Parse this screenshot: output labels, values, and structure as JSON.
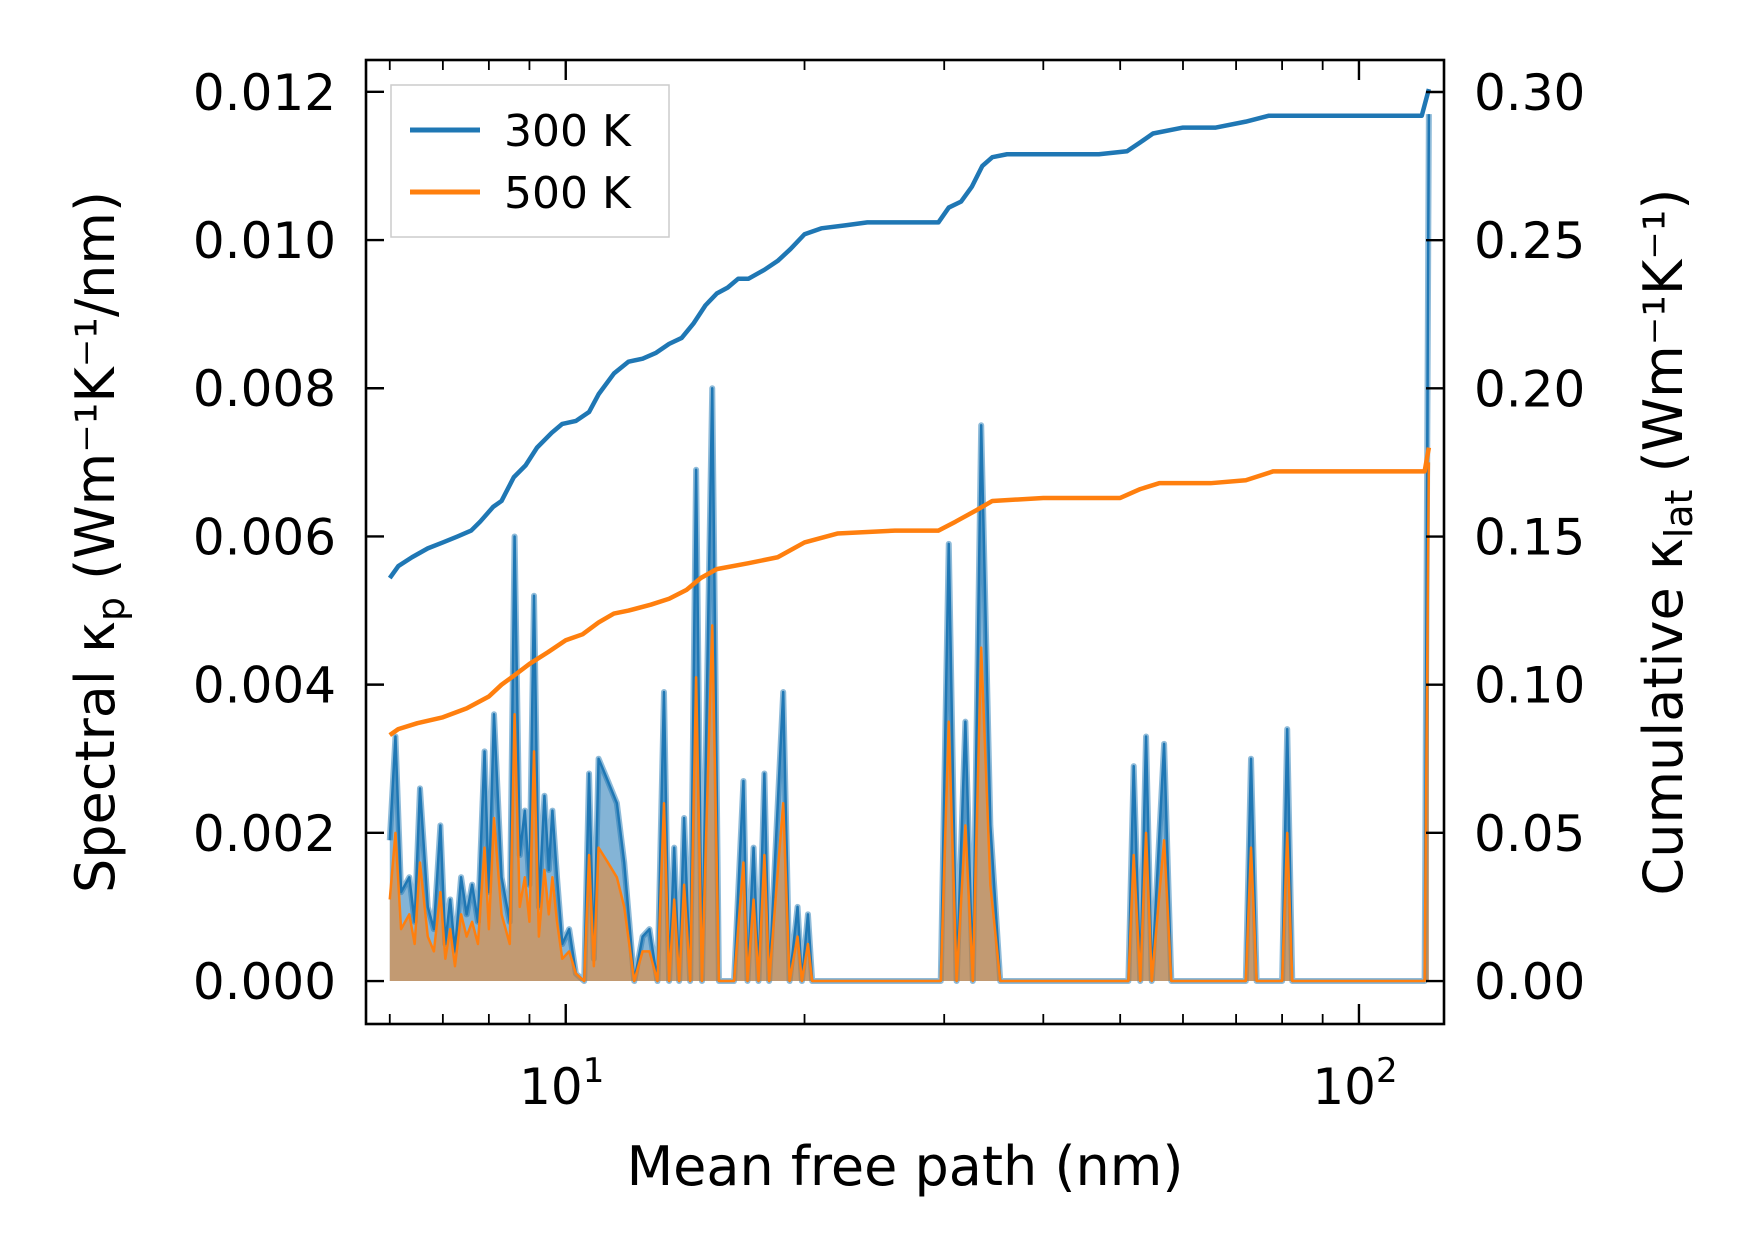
{
  "chart_data": {
    "type": "line",
    "xlabel": "Mean free path (nm)",
    "ylabel_left": {
      "pre": "Spectral κ",
      "sub": "p",
      "post": " (Wm⁻¹K⁻¹/nm)"
    },
    "ylabel_right": {
      "pre": "Cumulative κ",
      "sub": "lat",
      "post": " (Wm⁻¹K⁻¹)"
    },
    "x_scale": "log",
    "xlim": [
      5.6,
      128
    ],
    "x_major_ticks": [
      {
        "value": 10,
        "label_base": "10",
        "label_exp": "1"
      },
      {
        "value": 100,
        "label_base": "10",
        "label_exp": "2"
      }
    ],
    "ylim_left": [
      -0.00058,
      0.01243
    ],
    "yticks_left": [
      "0.000",
      "0.002",
      "0.004",
      "0.006",
      "0.008",
      "0.010",
      "0.012"
    ],
    "ylim_right": [
      -0.0145,
      0.3108
    ],
    "yticks_right": [
      "0.00",
      "0.05",
      "0.10",
      "0.15",
      "0.20",
      "0.25",
      "0.30"
    ],
    "legend": {
      "position": "top-left",
      "entries": [
        {
          "label": "300 K",
          "color": "#1f77b4"
        },
        {
          "label": "500 K",
          "color": "#ff7f0e"
        }
      ]
    },
    "colors": {
      "blue": "#1f77b4",
      "orange": "#ff7f0e"
    },
    "spectral_300K": [
      [
        6.0,
        0.0019
      ],
      [
        6.1,
        0.0033
      ],
      [
        6.2,
        0.0012
      ],
      [
        6.35,
        0.0014
      ],
      [
        6.45,
        0.0008
      ],
      [
        6.55,
        0.0026
      ],
      [
        6.7,
        0.001
      ],
      [
        6.82,
        0.0007
      ],
      [
        6.95,
        0.0021
      ],
      [
        7.05,
        0.0005
      ],
      [
        7.15,
        0.0011
      ],
      [
        7.25,
        0.0004
      ],
      [
        7.38,
        0.0014
      ],
      [
        7.5,
        0.0009
      ],
      [
        7.62,
        0.0013
      ],
      [
        7.75,
        0.0008
      ],
      [
        7.9,
        0.0031
      ],
      [
        8.0,
        0.0012
      ],
      [
        8.12,
        0.0036
      ],
      [
        8.3,
        0.0014
      ],
      [
        8.5,
        0.0008
      ],
      [
        8.62,
        0.006
      ],
      [
        8.75,
        0.0017
      ],
      [
        8.88,
        0.0023
      ],
      [
        9.0,
        0.0013
      ],
      [
        9.12,
        0.0052
      ],
      [
        9.25,
        0.001
      ],
      [
        9.4,
        0.0025
      ],
      [
        9.52,
        0.0015
      ],
      [
        9.62,
        0.0023
      ],
      [
        9.75,
        0.0014
      ],
      [
        9.9,
        0.0005
      ],
      [
        10.1,
        0.0007
      ],
      [
        10.3,
        0.0001
      ],
      [
        10.55,
        0.0
      ],
      [
        10.7,
        0.0028
      ],
      [
        10.85,
        0.0003
      ],
      [
        11.0,
        0.003
      ],
      [
        11.3,
        0.0027
      ],
      [
        11.6,
        0.0024
      ],
      [
        11.85,
        0.0016
      ],
      [
        12.2,
        0.0
      ],
      [
        12.5,
        0.0006
      ],
      [
        12.75,
        0.0007
      ],
      [
        13.05,
        0.0
      ],
      [
        13.3,
        0.0039
      ],
      [
        13.5,
        0.0
      ],
      [
        13.7,
        0.0018
      ],
      [
        13.9,
        0.0
      ],
      [
        14.1,
        0.0022
      ],
      [
        14.35,
        0.0
      ],
      [
        14.6,
        0.0069
      ],
      [
        14.85,
        0.0
      ],
      [
        15.3,
        0.008
      ],
      [
        15.6,
        0.0
      ],
      [
        16.3,
        0.0
      ],
      [
        16.75,
        0.0027
      ],
      [
        16.95,
        0.0
      ],
      [
        17.25,
        0.0018
      ],
      [
        17.5,
        0.0
      ],
      [
        17.8,
        0.0028
      ],
      [
        18.05,
        0.0
      ],
      [
        18.45,
        0.0021
      ],
      [
        18.8,
        0.0039
      ],
      [
        19.15,
        0.0
      ],
      [
        19.6,
        0.001
      ],
      [
        19.85,
        0.0
      ],
      [
        20.2,
        0.0009
      ],
      [
        20.45,
        0.0
      ],
      [
        29.7,
        0.0
      ],
      [
        30.4,
        0.0059
      ],
      [
        31.1,
        0.0
      ],
      [
        31.9,
        0.0035
      ],
      [
        32.6,
        0.0
      ],
      [
        33.4,
        0.0075
      ],
      [
        34.3,
        0.0021
      ],
      [
        35.3,
        0.0
      ],
      [
        51.2,
        0.0
      ],
      [
        52.0,
        0.0029
      ],
      [
        53.0,
        0.0
      ],
      [
        53.9,
        0.0033
      ],
      [
        54.8,
        0.0
      ],
      [
        56.8,
        0.0032
      ],
      [
        58.0,
        0.0
      ],
      [
        72.0,
        0.0
      ],
      [
        73.1,
        0.003
      ],
      [
        74.3,
        0.0
      ],
      [
        80.0,
        0.0
      ],
      [
        81.2,
        0.0034
      ],
      [
        82.4,
        0.0
      ],
      [
        121.0,
        0.0
      ],
      [
        122.5,
        0.0117
      ]
    ],
    "spectral_500K": [
      [
        6.0,
        0.0011
      ],
      [
        6.1,
        0.002
      ],
      [
        6.2,
        0.0007
      ],
      [
        6.35,
        0.0009
      ],
      [
        6.45,
        0.0005
      ],
      [
        6.55,
        0.0016
      ],
      [
        6.7,
        0.0006
      ],
      [
        6.82,
        0.0004
      ],
      [
        6.95,
        0.0012
      ],
      [
        7.05,
        0.0003
      ],
      [
        7.15,
        0.0007
      ],
      [
        7.25,
        0.0002
      ],
      [
        7.38,
        0.0009
      ],
      [
        7.5,
        0.0006
      ],
      [
        7.62,
        0.0008
      ],
      [
        7.75,
        0.0005
      ],
      [
        7.9,
        0.0018
      ],
      [
        8.0,
        0.0007
      ],
      [
        8.12,
        0.0022
      ],
      [
        8.3,
        0.0009
      ],
      [
        8.5,
        0.0005
      ],
      [
        8.62,
        0.0036
      ],
      [
        8.75,
        0.001
      ],
      [
        8.88,
        0.0014
      ],
      [
        9.0,
        0.0008
      ],
      [
        9.12,
        0.0031
      ],
      [
        9.25,
        0.0006
      ],
      [
        9.4,
        0.0015
      ],
      [
        9.52,
        0.0009
      ],
      [
        9.62,
        0.0014
      ],
      [
        9.75,
        0.0008
      ],
      [
        9.9,
        0.0003
      ],
      [
        10.1,
        0.0004
      ],
      [
        10.3,
        0.0001
      ],
      [
        10.55,
        0.0
      ],
      [
        10.7,
        0.0017
      ],
      [
        10.85,
        0.0002
      ],
      [
        11.0,
        0.0018
      ],
      [
        11.3,
        0.0016
      ],
      [
        11.6,
        0.0014
      ],
      [
        11.85,
        0.001
      ],
      [
        12.2,
        0.0
      ],
      [
        12.5,
        0.0004
      ],
      [
        12.75,
        0.0004
      ],
      [
        13.05,
        0.0
      ],
      [
        13.3,
        0.0024
      ],
      [
        13.5,
        0.0
      ],
      [
        13.7,
        0.0011
      ],
      [
        13.9,
        0.0
      ],
      [
        14.1,
        0.0013
      ],
      [
        14.35,
        0.0
      ],
      [
        14.6,
        0.0041
      ],
      [
        14.85,
        0.0
      ],
      [
        15.3,
        0.0048
      ],
      [
        15.6,
        0.0
      ],
      [
        16.3,
        0.0
      ],
      [
        16.75,
        0.0016
      ],
      [
        16.95,
        0.0
      ],
      [
        17.25,
        0.0011
      ],
      [
        17.5,
        0.0
      ],
      [
        17.8,
        0.0017
      ],
      [
        18.05,
        0.0
      ],
      [
        18.45,
        0.0013
      ],
      [
        18.8,
        0.0024
      ],
      [
        19.15,
        0.0
      ],
      [
        19.6,
        0.0006
      ],
      [
        19.85,
        0.0
      ],
      [
        20.2,
        0.0005
      ],
      [
        20.45,
        0.0
      ],
      [
        29.7,
        0.0
      ],
      [
        30.4,
        0.0035
      ],
      [
        31.1,
        0.0
      ],
      [
        31.9,
        0.0021
      ],
      [
        32.6,
        0.0
      ],
      [
        33.4,
        0.0045
      ],
      [
        34.3,
        0.0013
      ],
      [
        35.3,
        0.0
      ],
      [
        51.2,
        0.0
      ],
      [
        52.0,
        0.0017
      ],
      [
        53.0,
        0.0
      ],
      [
        53.9,
        0.002
      ],
      [
        54.8,
        0.0
      ],
      [
        56.8,
        0.0019
      ],
      [
        58.0,
        0.0
      ],
      [
        72.0,
        0.0
      ],
      [
        73.1,
        0.0018
      ],
      [
        74.3,
        0.0
      ],
      [
        80.0,
        0.0
      ],
      [
        81.2,
        0.002
      ],
      [
        82.4,
        0.0
      ],
      [
        121.0,
        0.0
      ],
      [
        122.5,
        0.007
      ]
    ],
    "cumulative_300K": [
      [
        6.0,
        0.136
      ],
      [
        6.15,
        0.14
      ],
      [
        6.4,
        0.143
      ],
      [
        6.7,
        0.146
      ],
      [
        7.0,
        0.148
      ],
      [
        7.3,
        0.15
      ],
      [
        7.6,
        0.152
      ],
      [
        7.8,
        0.155
      ],
      [
        8.1,
        0.16
      ],
      [
        8.3,
        0.162
      ],
      [
        8.6,
        0.17
      ],
      [
        8.9,
        0.174
      ],
      [
        9.2,
        0.18
      ],
      [
        9.6,
        0.185
      ],
      [
        9.9,
        0.188
      ],
      [
        10.3,
        0.189
      ],
      [
        10.7,
        0.192
      ],
      [
        11.0,
        0.198
      ],
      [
        11.5,
        0.205
      ],
      [
        12.0,
        0.209
      ],
      [
        12.5,
        0.21
      ],
      [
        13.0,
        0.212
      ],
      [
        13.5,
        0.215
      ],
      [
        14.0,
        0.217
      ],
      [
        14.5,
        0.222
      ],
      [
        15.0,
        0.228
      ],
      [
        15.5,
        0.232
      ],
      [
        16.0,
        0.234
      ],
      [
        16.5,
        0.237
      ],
      [
        17.0,
        0.237
      ],
      [
        17.8,
        0.24
      ],
      [
        18.5,
        0.243
      ],
      [
        19.2,
        0.247
      ],
      [
        20.0,
        0.252
      ],
      [
        21.0,
        0.254
      ],
      [
        22.5,
        0.255
      ],
      [
        24.0,
        0.256
      ],
      [
        26.0,
        0.256
      ],
      [
        29.5,
        0.256
      ],
      [
        30.4,
        0.261
      ],
      [
        31.5,
        0.263
      ],
      [
        32.5,
        0.268
      ],
      [
        33.5,
        0.275
      ],
      [
        34.5,
        0.278
      ],
      [
        36.0,
        0.279
      ],
      [
        40.0,
        0.279
      ],
      [
        47.0,
        0.279
      ],
      [
        51.0,
        0.28
      ],
      [
        53.0,
        0.283
      ],
      [
        55.0,
        0.286
      ],
      [
        60.0,
        0.288
      ],
      [
        66.0,
        0.288
      ],
      [
        72.0,
        0.29
      ],
      [
        77.0,
        0.292
      ],
      [
        90.0,
        0.292
      ],
      [
        110.0,
        0.292
      ],
      [
        120.0,
        0.292
      ],
      [
        122.5,
        0.301
      ]
    ],
    "cumulative_500K": [
      [
        6.0,
        0.083
      ],
      [
        6.15,
        0.085
      ],
      [
        6.5,
        0.087
      ],
      [
        7.0,
        0.089
      ],
      [
        7.5,
        0.092
      ],
      [
        8.0,
        0.096
      ],
      [
        8.3,
        0.1
      ],
      [
        8.6,
        0.103
      ],
      [
        9.0,
        0.107
      ],
      [
        9.5,
        0.111
      ],
      [
        10.0,
        0.115
      ],
      [
        10.5,
        0.117
      ],
      [
        11.0,
        0.121
      ],
      [
        11.5,
        0.124
      ],
      [
        12.0,
        0.125
      ],
      [
        12.8,
        0.127
      ],
      [
        13.5,
        0.129
      ],
      [
        14.2,
        0.132
      ],
      [
        14.8,
        0.136
      ],
      [
        15.5,
        0.139
      ],
      [
        17.0,
        0.141
      ],
      [
        18.5,
        0.143
      ],
      [
        20.0,
        0.148
      ],
      [
        22.0,
        0.151
      ],
      [
        26.0,
        0.152
      ],
      [
        29.5,
        0.152
      ],
      [
        31.0,
        0.155
      ],
      [
        33.0,
        0.159
      ],
      [
        34.5,
        0.162
      ],
      [
        40.0,
        0.163
      ],
      [
        50.0,
        0.163
      ],
      [
        53.0,
        0.166
      ],
      [
        56.0,
        0.168
      ],
      [
        65.0,
        0.168
      ],
      [
        72.0,
        0.169
      ],
      [
        78.0,
        0.172
      ],
      [
        100.0,
        0.172
      ],
      [
        121.0,
        0.172
      ],
      [
        122.5,
        0.18
      ]
    ]
  }
}
